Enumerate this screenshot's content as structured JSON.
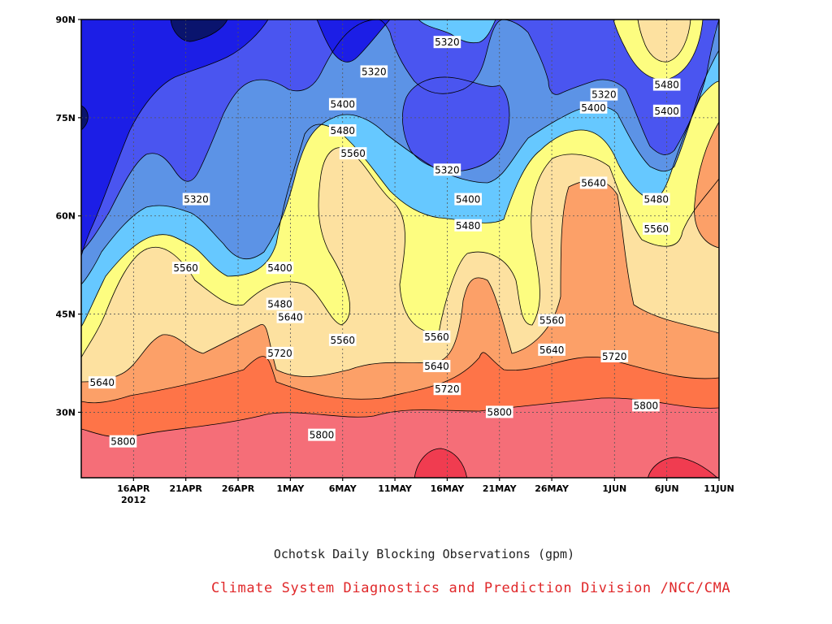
{
  "chart_data": {
    "type": "contour",
    "title": "Ochotsk Daily Blocking Observations (gpm)",
    "credit": "Climate System Diagnostics and Prediction Division /NCC/CMA",
    "x_ticks": [
      {
        "label": "16APR",
        "sub": "2012"
      },
      {
        "label": "21APR"
      },
      {
        "label": "26APR"
      },
      {
        "label": "1MAY"
      },
      {
        "label": "6MAY"
      },
      {
        "label": "11MAY"
      },
      {
        "label": "16MAY"
      },
      {
        "label": "21MAY"
      },
      {
        "label": "26MAY"
      },
      {
        "label": "1JUN"
      },
      {
        "label": "6JUN"
      },
      {
        "label": "11JUN"
      }
    ],
    "y_ticks": [
      "30N",
      "45N",
      "60N",
      "75N",
      "90N"
    ],
    "y_values": [
      30,
      45,
      60,
      75,
      90
    ],
    "ylim": [
      20,
      90
    ],
    "x_range": [
      "2012-04-11",
      "2012-06-11"
    ],
    "grid": true,
    "contour_levels": [
      5240,
      5320,
      5400,
      5480,
      5560,
      5640,
      5720,
      5800,
      5880
    ],
    "fill_colors": {
      "below_5240": "#0a146e",
      "5240_5320": "#1c1ee6",
      "5320_5400": "#4a55f0",
      "5400_5480": "#5c93e6",
      "5480_5560": "#66c8ff",
      "5560_5640": "#fdfd80",
      "5640_5720": "#fde1a0",
      "5720_5800": "#fca068",
      "5800_5880": "#fe7448",
      "above_5880": "#f56e78",
      "core": "#f03c50"
    },
    "contour_labels": [
      {
        "text": "5320",
        "date": "2012-04-22",
        "lat": 62.5
      },
      {
        "text": "5320",
        "date": "2012-05-09",
        "lat": 82
      },
      {
        "text": "5320",
        "date": "2012-05-16",
        "lat": 86.5
      },
      {
        "text": "5320",
        "date": "2012-05-16",
        "lat": 67
      },
      {
        "text": "5320",
        "date": "2012-05-31",
        "lat": 78.5
      },
      {
        "text": "5400",
        "date": "2012-04-30",
        "lat": 52
      },
      {
        "text": "5400",
        "date": "2012-05-06",
        "lat": 77
      },
      {
        "text": "5400",
        "date": "2012-05-18",
        "lat": 62.5
      },
      {
        "text": "5400",
        "date": "2012-05-30",
        "lat": 76.5
      },
      {
        "text": "5400",
        "date": "2012-06-06",
        "lat": 76
      },
      {
        "text": "5480",
        "date": "2012-05-06",
        "lat": 73
      },
      {
        "text": "5480",
        "date": "2012-04-30",
        "lat": 46.5
      },
      {
        "text": "5480",
        "date": "2012-05-18",
        "lat": 58.5
      },
      {
        "text": "5480",
        "date": "2012-06-06",
        "lat": 80
      },
      {
        "text": "5480",
        "date": "2012-06-05",
        "lat": 62.5
      },
      {
        "text": "5560",
        "date": "2012-04-21",
        "lat": 52
      },
      {
        "text": "5560",
        "date": "2012-05-07",
        "lat": 69.5
      },
      {
        "text": "5560",
        "date": "2012-05-06",
        "lat": 41
      },
      {
        "text": "5560",
        "date": "2012-05-15",
        "lat": 41.5
      },
      {
        "text": "5560",
        "date": "2012-05-26",
        "lat": 44
      },
      {
        "text": "5560",
        "date": "2012-06-05",
        "lat": 58
      },
      {
        "text": "5640",
        "date": "2012-04-13",
        "lat": 34.5
      },
      {
        "text": "5640",
        "date": "2012-05-01",
        "lat": 44.5
      },
      {
        "text": "5640",
        "date": "2012-05-15",
        "lat": 37
      },
      {
        "text": "5640",
        "date": "2012-05-26",
        "lat": 39.5
      },
      {
        "text": "5640",
        "date": "2012-05-30",
        "lat": 65
      },
      {
        "text": "5720",
        "date": "2012-04-30",
        "lat": 39
      },
      {
        "text": "5720",
        "date": "2012-05-16",
        "lat": 33.5
      },
      {
        "text": "5720",
        "date": "2012-06-01",
        "lat": 38.5
      },
      {
        "text": "5800",
        "date": "2012-04-15",
        "lat": 25.5
      },
      {
        "text": "5800",
        "date": "2012-05-04",
        "lat": 26.5
      },
      {
        "text": "5800",
        "date": "2012-05-21",
        "lat": 30
      },
      {
        "text": "5800",
        "date": "2012-06-04",
        "lat": 31
      }
    ]
  }
}
